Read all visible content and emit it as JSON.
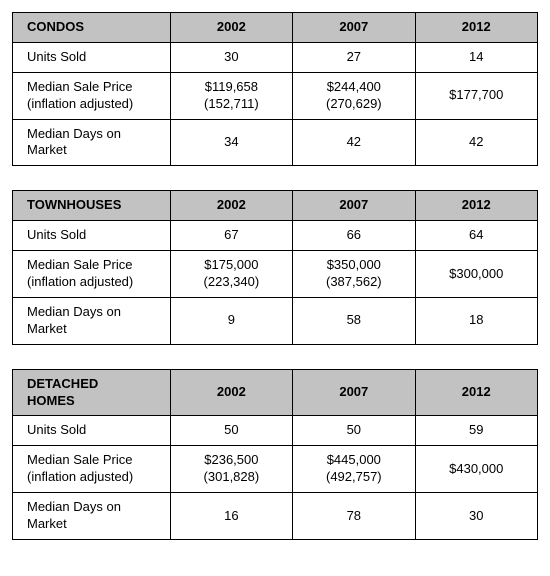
{
  "tables": [
    {
      "title": "CONDOS",
      "years": [
        "2002",
        "2007",
        "2012"
      ],
      "rows": [
        {
          "label": "Units Sold",
          "values": [
            "30",
            "27",
            "14"
          ]
        },
        {
          "label": "Median Sale Price\n(inflation adjusted)",
          "values": [
            "$119,658\n(152,711)",
            "$244,400\n(270,629)",
            "$177,700"
          ]
        },
        {
          "label": "Median Days on\nMarket",
          "values": [
            "34",
            "42",
            "42"
          ]
        }
      ]
    },
    {
      "title": "TOWNHOUSES",
      "years": [
        "2002",
        "2007",
        "2012"
      ],
      "rows": [
        {
          "label": "Units Sold",
          "values": [
            "67",
            "66",
            "64"
          ]
        },
        {
          "label": "Median Sale Price\n(inflation adjusted)",
          "values": [
            "$175,000\n(223,340)",
            "$350,000\n(387,562)",
            "$300,000"
          ]
        },
        {
          "label": "Median Days on\nMarket",
          "values": [
            "9",
            "58",
            "18"
          ]
        }
      ]
    },
    {
      "title": "DETACHED\nHOMES",
      "years": [
        "2002",
        "2007",
        "2012"
      ],
      "rows": [
        {
          "label": "Units Sold",
          "values": [
            "50",
            "50",
            "59"
          ]
        },
        {
          "label": "Median Sale Price\n(inflation adjusted)",
          "values": [
            "$236,500\n(301,828)",
            "$445,000\n(492,757)",
            "$430,000"
          ]
        },
        {
          "label": "Median Days on\nMarket",
          "values": [
            "16",
            "78",
            "30"
          ]
        }
      ]
    }
  ],
  "colors": {
    "header_bg": "#c2c2c2",
    "border": "#000000",
    "background": "#ffffff",
    "text": "#000000"
  }
}
